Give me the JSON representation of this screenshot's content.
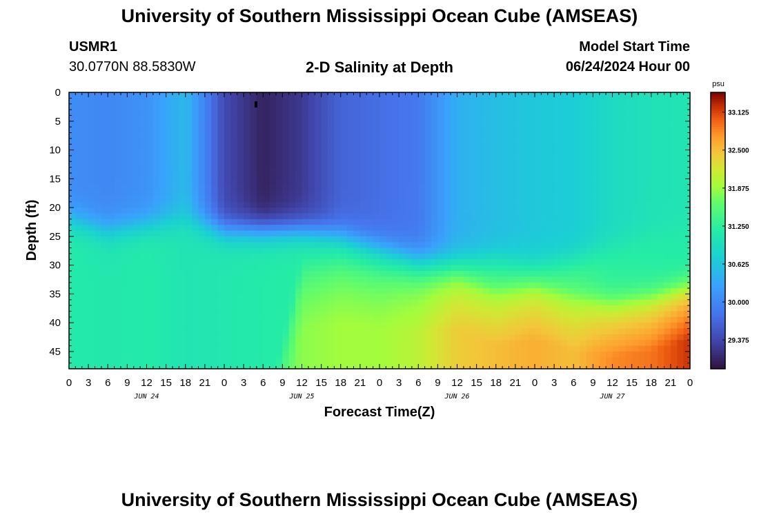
{
  "header": {
    "title": "University of Southern Mississippi Ocean Cube (AMSEAS)",
    "station": "USMR1",
    "coords": "30.0770N  88.5830W",
    "plot_title": "2-D Salinity at Depth",
    "model_label": "Model Start Time",
    "model_time": "06/24/2024 Hour 00"
  },
  "footer": {
    "title": "University of Southern Mississippi Ocean Cube (AMSEAS)"
  },
  "chart_data": {
    "type": "heatmap",
    "title": "2-D Salinity at Depth",
    "xlabel": "Forecast Time(Z)",
    "ylabel": "Depth (ft)",
    "x_range_hours": [
      0,
      96
    ],
    "ylim": [
      0,
      48
    ],
    "x_ticks": [
      "0",
      "3",
      "6",
      "9",
      "12",
      "15",
      "18",
      "21",
      "0",
      "3",
      "6",
      "9",
      "12",
      "15",
      "18",
      "21",
      "0",
      "3",
      "6",
      "9",
      "12",
      "15",
      "18",
      "21",
      "0",
      "3",
      "6",
      "9",
      "12",
      "15",
      "18",
      "21",
      "0"
    ],
    "day_labels": [
      "JUN 24",
      "JUN 25",
      "JUN 26",
      "JUN 27"
    ],
    "y_ticks": [
      "0",
      "5",
      "10",
      "15",
      "20",
      "25",
      "30",
      "35",
      "40",
      "45"
    ],
    "colorbar": {
      "unit": "psu",
      "range": [
        28.9,
        33.45
      ],
      "ticks": [
        "33.125",
        "32.500",
        "31.875",
        "31.250",
        "30.625",
        "30.000",
        "29.375"
      ]
    },
    "layer_model": {
      "description": "Approximate salinity field: fresher surface layer over saltier bottom layer",
      "times_hr": [
        0,
        6,
        12,
        18,
        24,
        30,
        36,
        42,
        48,
        54,
        60,
        66,
        72,
        78,
        84,
        90,
        96
      ],
      "surface_psu": [
        30.05,
        30.0,
        30.1,
        30.5,
        29.4,
        29.05,
        29.25,
        29.65,
        29.75,
        29.85,
        30.4,
        30.55,
        30.65,
        30.7,
        30.9,
        31.0,
        31.05
      ],
      "interface_depth_ft": [
        22,
        24,
        23,
        22,
        24,
        24,
        24,
        25,
        27,
        29,
        29,
        29,
        30,
        29,
        27,
        25,
        23
      ],
      "mid_psu": [
        31.15,
        31.1,
        31.15,
        31.05,
        31.1,
        31.15,
        31.2,
        31.25,
        31.2,
        31.3,
        31.3,
        31.35,
        31.35,
        31.4,
        31.25,
        31.2,
        31.15
      ],
      "halocline_depth_ft": [
        60,
        60,
        60,
        60,
        60,
        60,
        31,
        30,
        31,
        32,
        31,
        34,
        33,
        35,
        36,
        35,
        33
      ],
      "bottom_psu": [
        31.2,
        31.3,
        31.3,
        31.4,
        31.25,
        31.35,
        31.8,
        31.9,
        31.9,
        32.05,
        32.4,
        32.5,
        32.6,
        32.5,
        32.8,
        32.9,
        33.2
      ]
    }
  }
}
